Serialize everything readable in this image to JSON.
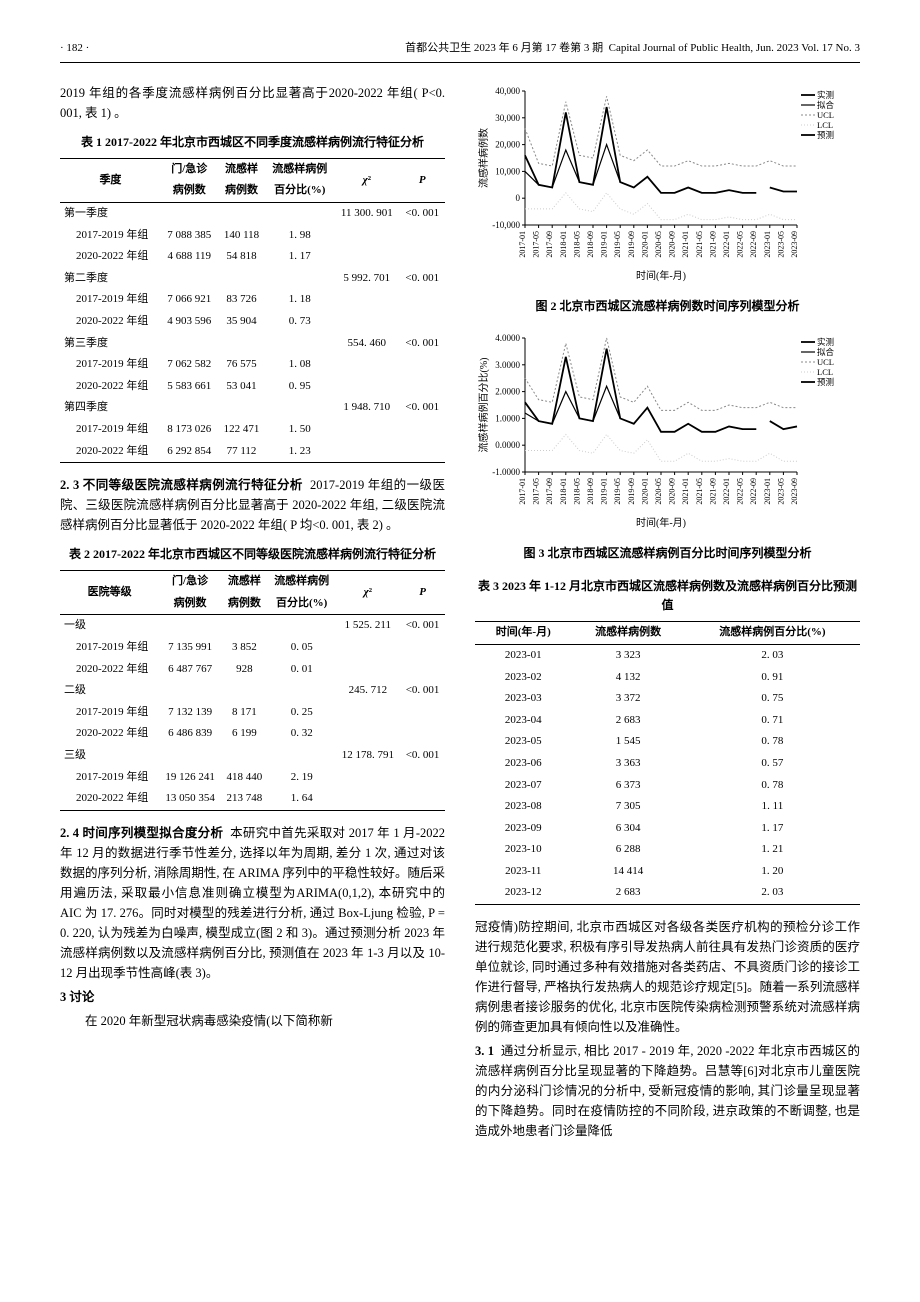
{
  "header": {
    "page_num": "· 182 ·",
    "journal_cn": "首都公共卫生  2023 年 6 月第 17 卷第 3 期",
    "journal_en": "Capital Journal of Public Health, Jun. 2023 Vol. 17  No. 3"
  },
  "para_intro": "2019 年组的各季度流感样病例百分比显著高于2020-2022 年组( P<0. 001, 表 1) 。",
  "table1": {
    "title": "表 1  2017-2022 年北京市西城区不同季度流感样病例流行特征分析",
    "headers": [
      "季度",
      "门/急诊\n病例数",
      "流感样\n病例数",
      "流感样病例\n百分比(%)",
      "χ²",
      "P"
    ],
    "rows": [
      {
        "label": "第一季度",
        "chi": "11 300. 901",
        "p": "<0. 001"
      },
      {
        "label": "  2017-2019 年组",
        "a": "7 088 385",
        "b": "140 118",
        "c": "1. 98"
      },
      {
        "label": "  2020-2022 年组",
        "a": "4 688 119",
        "b": "54 818",
        "c": "1. 17"
      },
      {
        "label": "第二季度",
        "chi": "5 992. 701",
        "p": "<0. 001"
      },
      {
        "label": "  2017-2019 年组",
        "a": "7 066 921",
        "b": "83 726",
        "c": "1. 18"
      },
      {
        "label": "  2020-2022 年组",
        "a": "4 903 596",
        "b": "35 904",
        "c": "0. 73"
      },
      {
        "label": "第三季度",
        "chi": "554. 460",
        "p": "<0. 001"
      },
      {
        "label": "  2017-2019 年组",
        "a": "7 062 582",
        "b": "76 575",
        "c": "1. 08"
      },
      {
        "label": "  2020-2022 年组",
        "a": "5 583 661",
        "b": "53 041",
        "c": "0. 95"
      },
      {
        "label": "第四季度",
        "chi": "1 948. 710",
        "p": "<0. 001"
      },
      {
        "label": "  2017-2019 年组",
        "a": "8 173 026",
        "b": "122 471",
        "c": "1. 50"
      },
      {
        "label": "  2020-2022 年组",
        "a": "6 292 854",
        "b": "77 112",
        "c": "1. 23"
      }
    ]
  },
  "para_23_head": "2. 3  不同等级医院流感样病例流行特征分析",
  "para_23": "2017-2019 年组的一级医院、三级医院流感样病例百分比显著高于 2020-2022 年组, 二级医院流感样病例百分比显著低于 2020-2022 年组( P 均<0. 001, 表 2) 。",
  "table2": {
    "title": "表 2  2017-2022 年北京市西城区不同等级医院流感样病例流行特征分析",
    "headers": [
      "医院等级",
      "门/急诊\n病例数",
      "流感样\n病例数",
      "流感样病例\n百分比(%)",
      "χ²",
      "P"
    ],
    "rows": [
      {
        "label": "一级",
        "chi": "1 525. 211",
        "p": "<0. 001"
      },
      {
        "label": "  2017-2019 年组",
        "a": "7 135 991",
        "b": "3 852",
        "c": "0. 05"
      },
      {
        "label": "  2020-2022 年组",
        "a": "6 487 767",
        "b": "928",
        "c": "0. 01"
      },
      {
        "label": "二级",
        "chi": "245. 712",
        "p": "<0. 001"
      },
      {
        "label": "  2017-2019 年组",
        "a": "7 132 139",
        "b": "8 171",
        "c": "0. 25"
      },
      {
        "label": "  2020-2022 年组",
        "a": "6 486 839",
        "b": "6 199",
        "c": "0. 32"
      },
      {
        "label": "三级",
        "chi": "12 178. 791",
        "p": "<0. 001"
      },
      {
        "label": "  2017-2019 年组",
        "a": "19 126 241",
        "b": "418 440",
        "c": "2. 19"
      },
      {
        "label": "  2020-2022 年组",
        "a": "13 050 354",
        "b": "213 748",
        "c": "1. 64"
      }
    ]
  },
  "para_24_head": "2. 4  时间序列模型拟合度分析",
  "para_24": "本研究中首先采取对 2017 年 1 月-2022 年 12 月的数据进行季节性差分, 选择以年为周期, 差分 1 次, 通过对该数据的序列分析, 消除周期性, 在 ARIMA 序列中的平稳性较好。随后采用遍历法, 采取最小信息准则确立模型为ARIMA(0,1,2), 本研究中的 AIC 为 17. 276。同时对模型的残差进行分析, 通过 Box-Ljung 检验, P = 0. 220, 认为残差为白噪声, 模型成立(图 2 和 3)。通过预测分析 2023 年流感样病例数以及流感样病例百分比, 预测值在 2023 年 1-3 月以及 10-12 月出现季节性高峰(表 3)。",
  "sec3_head": "3  讨论",
  "sec3_para": "在 2020 年新型冠状病毒感染疫情(以下简称新",
  "fig2": {
    "caption": "图 2  北京市西城区流感样病例数时间序列模型分析",
    "ylabel": "流感样病例数",
    "xlabel": "时间(年-月)",
    "legend": [
      "实测",
      "拟合",
      "UCL",
      "LCL",
      "预测"
    ],
    "ylim": [
      -10000,
      40000
    ],
    "yticks": [
      -10000,
      0,
      10000,
      20000,
      30000,
      40000
    ],
    "xtick_labels": [
      "2017-01",
      "2017-05",
      "2017-09",
      "2018-01",
      "2018-05",
      "2018-09",
      "2019-01",
      "2019-05",
      "2019-09",
      "2020-01",
      "2020-05",
      "2020-09",
      "2021-01",
      "2021-05",
      "2021-09",
      "2022-01",
      "2022-05",
      "2022-09",
      "2023-01",
      "2023-05",
      "2023-09"
    ],
    "series_actual": [
      16000,
      5000,
      4000,
      32000,
      6000,
      5000,
      34000,
      6000,
      4000,
      8000,
      2000,
      2000,
      4000,
      2000,
      2000,
      3000,
      2000,
      2000
    ],
    "series_fit": [
      10000,
      5000,
      4000,
      18000,
      6000,
      5000,
      20000,
      6000,
      4000,
      8000,
      2000,
      2000,
      4000,
      2000,
      2000,
      3000,
      2000,
      2000
    ],
    "series_ucl": [
      26000,
      13000,
      12000,
      36000,
      16000,
      15000,
      38000,
      16000,
      14000,
      18000,
      12000,
      12000,
      14000,
      12000,
      12000,
      13000,
      12000,
      12000,
      14000,
      12000,
      12000
    ],
    "series_lcl": [
      -4000,
      -4000,
      -4000,
      2000,
      -4000,
      -5000,
      2000,
      -4000,
      -6000,
      -2000,
      -8000,
      -8000,
      -6000,
      -8000,
      -8000,
      -7000,
      -8000,
      -8000,
      -6000,
      -8000,
      -8000
    ],
    "series_pred": [
      null,
      null,
      null,
      null,
      null,
      null,
      null,
      null,
      null,
      null,
      null,
      null,
      null,
      null,
      null,
      null,
      null,
      null,
      4000,
      2500,
      2500
    ],
    "colors": {
      "axis": "#000000",
      "actual": "#000000",
      "fit": "#000000",
      "ucl": "#888888",
      "lcl": "#cccccc",
      "pred": "#000000",
      "bg": "#ffffff"
    },
    "line_widths": {
      "actual": 1.8,
      "fit": 1.2,
      "ucl": 1.0,
      "lcl": 1.0,
      "pred": 1.8
    },
    "dash": {
      "actual": "",
      "fit": "",
      "ucl": "2,2",
      "lcl": "1,2",
      "pred": ""
    },
    "fontsize_axis": 9
  },
  "fig3": {
    "caption": "图 3  北京市西城区流感样病例百分比时间序列模型分析",
    "ylabel": "流感样病例百分比(%)",
    "xlabel": "时间(年-月)",
    "legend": [
      "实测",
      "拟合",
      "UCL",
      "LCL",
      "预测"
    ],
    "ylim": [
      -1.0,
      4.0
    ],
    "yticks": [
      -1.0,
      0.0,
      1.0,
      2.0,
      3.0,
      4.0
    ],
    "ytick_labels": [
      "-1.0000",
      "0.0000",
      "1.0000",
      "2.0000",
      "3.0000",
      "4.0000"
    ],
    "xtick_labels": [
      "2017-01",
      "2017-05",
      "2017-09",
      "2018-01",
      "2018-05",
      "2018-09",
      "2019-01",
      "2019-05",
      "2019-09",
      "2020-01",
      "2020-05",
      "2020-09",
      "2021-01",
      "2021-05",
      "2021-09",
      "2022-01",
      "2022-05",
      "2022-09",
      "2023-01",
      "2023-05",
      "2023-09"
    ],
    "series_actual": [
      1.6,
      0.9,
      0.8,
      3.3,
      1.0,
      0.9,
      3.6,
      1.0,
      0.8,
      1.4,
      0.5,
      0.5,
      0.8,
      0.5,
      0.5,
      0.7,
      0.6,
      0.6
    ],
    "series_fit": [
      1.2,
      0.9,
      0.8,
      2.0,
      1.0,
      0.9,
      2.2,
      1.0,
      0.8,
      1.4,
      0.5,
      0.5,
      0.8,
      0.5,
      0.5,
      0.7,
      0.6,
      0.6
    ],
    "series_ucl": [
      2.5,
      1.7,
      1.6,
      3.8,
      1.8,
      1.7,
      4.0,
      1.8,
      1.6,
      2.2,
      1.3,
      1.3,
      1.6,
      1.3,
      1.3,
      1.5,
      1.4,
      1.4,
      1.6,
      1.4,
      1.4
    ],
    "series_lcl": [
      -0.2,
      -0.2,
      -0.2,
      0.4,
      -0.2,
      -0.3,
      0.4,
      -0.2,
      -0.3,
      0.2,
      -0.6,
      -0.6,
      -0.3,
      -0.6,
      -0.6,
      -0.5,
      -0.6,
      -0.6,
      -0.3,
      -0.6,
      -0.6
    ],
    "series_pred": [
      null,
      null,
      null,
      null,
      null,
      null,
      null,
      null,
      null,
      null,
      null,
      null,
      null,
      null,
      null,
      null,
      null,
      null,
      0.9,
      0.6,
      0.7
    ],
    "colors": {
      "axis": "#000000",
      "actual": "#000000",
      "fit": "#000000",
      "ucl": "#888888",
      "lcl": "#cccccc",
      "pred": "#000000",
      "bg": "#ffffff"
    },
    "line_widths": {
      "actual": 1.8,
      "fit": 1.2,
      "ucl": 1.0,
      "lcl": 1.0,
      "pred": 1.8
    },
    "dash": {
      "actual": "",
      "fit": "",
      "ucl": "2,2",
      "lcl": "1,2",
      "pred": ""
    },
    "fontsize_axis": 9
  },
  "table3": {
    "title": "表 3  2023 年 1-12 月北京市西城区流感样病例数及流感样病例百分比预测值",
    "headers": [
      "时间(年-月)",
      "流感样病例数",
      "流感样病例百分比(%)"
    ],
    "rows": [
      [
        "2023-01",
        "3 323",
        "2. 03"
      ],
      [
        "2023-02",
        "4 132",
        "0. 91"
      ],
      [
        "2023-03",
        "3 372",
        "0. 75"
      ],
      [
        "2023-04",
        "2 683",
        "0. 71"
      ],
      [
        "2023-05",
        "1 545",
        "0. 78"
      ],
      [
        "2023-06",
        "3 363",
        "0. 57"
      ],
      [
        "2023-07",
        "6 373",
        "0. 78"
      ],
      [
        "2023-08",
        "7 305",
        "1. 11"
      ],
      [
        "2023-09",
        "6 304",
        "1. 17"
      ],
      [
        "2023-10",
        "6 288",
        "1. 21"
      ],
      [
        "2023-11",
        "14 414",
        "1. 20"
      ],
      [
        "2023-12",
        "2 683",
        "2. 03"
      ]
    ]
  },
  "para_right_1": "冠疫情)防控期间, 北京市西城区对各级各类医疗机构的预检分诊工作进行规范化要求, 积极有序引导发热病人前往具有发热门诊资质的医疗单位就诊, 同时通过多种有效措施对各类药店、不具资质门诊的接诊工作进行督导, 严格执行发热病人的规范诊疗规定[5]。随着一系列流感样病例患者接诊服务的优化, 北京市医院传染病检测预警系统对流感样病例的筛查更加具有倾向性以及准确性。",
  "para_31_head": "3. 1",
  "para_31": "通过分析显示, 相比 2017 - 2019 年, 2020 -2022 年北京市西城区的流感样病例百分比呈现显著的下降趋势。吕慧等[6]对北京市儿童医院的内分泌科门诊情况的分析中, 受新冠疫情的影响, 其门诊量呈现显著的下降趋势。同时在疫情防控的不同阶段, 进京政策的不断调整, 也是造成外地患者门诊量降低"
}
